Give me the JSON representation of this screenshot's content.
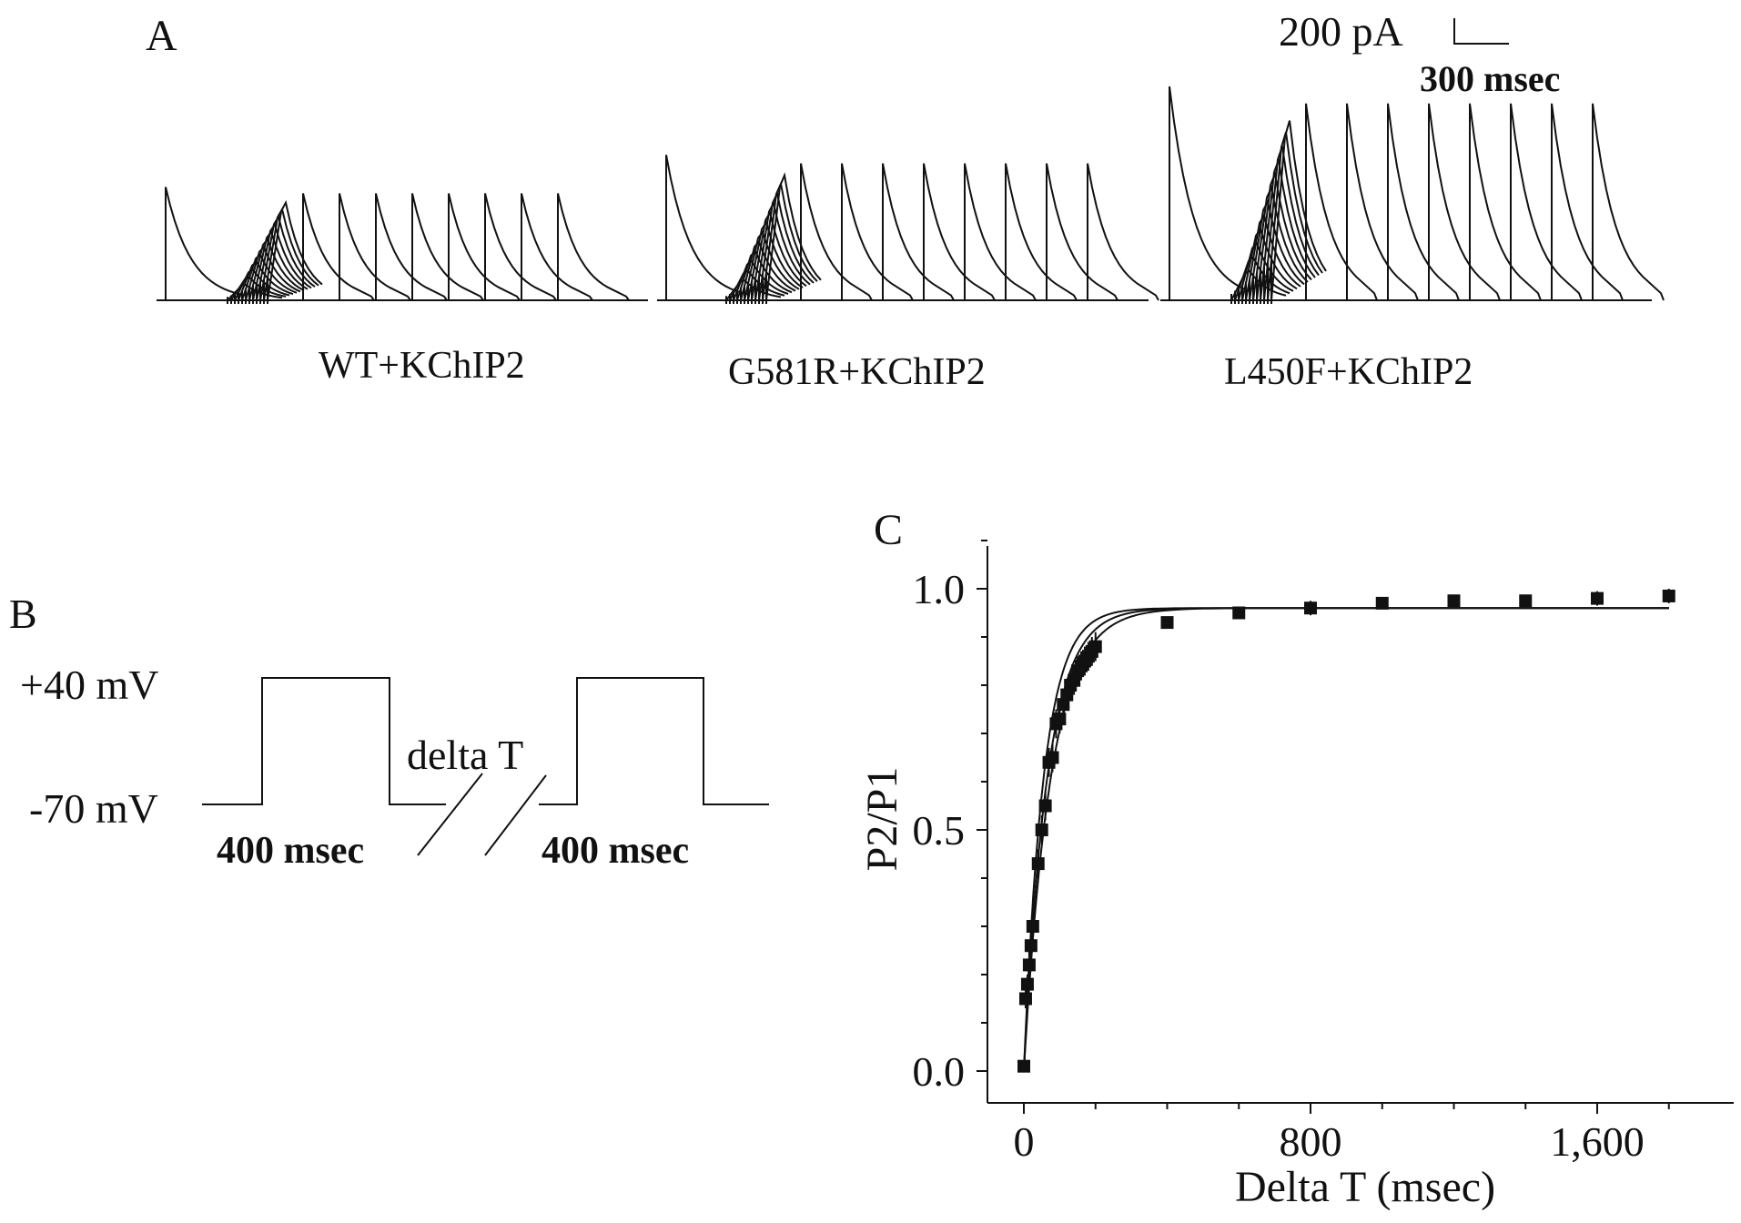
{
  "panel_a": {
    "label": "A",
    "scale_current": "200 pA",
    "scale_time": "300 msec",
    "traces": [
      {
        "name": "WT+KChIP2",
        "p1_peak": 0.53,
        "p2_peak": 0.5
      },
      {
        "name": "G581R+KChIP2",
        "p1_peak": 0.68,
        "p2_peak": 0.64
      },
      {
        "name": "L450F+KChIP2",
        "p1_peak": 1.0,
        "p2_peak": 0.92
      }
    ]
  },
  "panel_b": {
    "label": "B",
    "v_high": "+40 mV",
    "v_low": "-70 mV",
    "interval_label": "delta T",
    "pulse1_duration": "400 msec",
    "pulse2_duration": "400 msec"
  },
  "chart_data": {
    "label": "C",
    "type": "scatter",
    "xlabel": "Delta T (msec)",
    "ylabel": "P2/P1",
    "xlim": [
      -50,
      2000
    ],
    "ylim": [
      -0.05,
      1.1
    ],
    "x_ticks": [
      "0",
      "800",
      "1,600"
    ],
    "x_tick_values": [
      0,
      800,
      1600
    ],
    "y_ticks": [
      "0.0",
      "0.5",
      "1.0"
    ],
    "y_tick_values": [
      0.0,
      0.5,
      1.0
    ],
    "series": [
      {
        "points": [
          [
            0,
            0.01
          ],
          [
            5,
            0.15
          ],
          [
            10,
            0.18
          ],
          [
            15,
            0.22
          ],
          [
            20,
            0.26
          ],
          [
            25,
            0.3
          ],
          [
            40,
            0.43
          ],
          [
            50,
            0.5
          ],
          [
            60,
            0.55
          ],
          [
            70,
            0.64
          ],
          [
            80,
            0.65
          ],
          [
            90,
            0.72
          ],
          [
            100,
            0.73
          ],
          [
            110,
            0.76
          ],
          [
            120,
            0.78
          ],
          [
            130,
            0.8
          ],
          [
            140,
            0.81
          ],
          [
            150,
            0.83
          ],
          [
            160,
            0.84
          ],
          [
            170,
            0.85
          ],
          [
            180,
            0.86
          ],
          [
            190,
            0.87
          ],
          [
            200,
            0.88
          ],
          [
            400,
            0.93
          ],
          [
            600,
            0.95
          ],
          [
            800,
            0.96
          ],
          [
            1000,
            0.97
          ],
          [
            1200,
            0.975
          ],
          [
            1400,
            0.975
          ],
          [
            1600,
            0.98
          ],
          [
            1800,
            0.985
          ]
        ],
        "errors": [
          0.01,
          0.02,
          0.02,
          0.03,
          0.03,
          0.03,
          0.03,
          0.03,
          0.03,
          0.03,
          0.03,
          0.03,
          0.03,
          0.03,
          0.03,
          0.03,
          0.03,
          0.03,
          0.03,
          0.03,
          0.03,
          0.03,
          0.03,
          0.01,
          0.01,
          0.015,
          0.01,
          0.01,
          0.01,
          0.015,
          0.015
        ]
      }
    ],
    "fits": [
      {
        "plateau": 0.96,
        "tau": 55
      },
      {
        "plateau": 0.96,
        "tau": 65
      },
      {
        "plateau": 0.96,
        "tau": 75
      }
    ],
    "marker": "square",
    "color": "#111111"
  }
}
